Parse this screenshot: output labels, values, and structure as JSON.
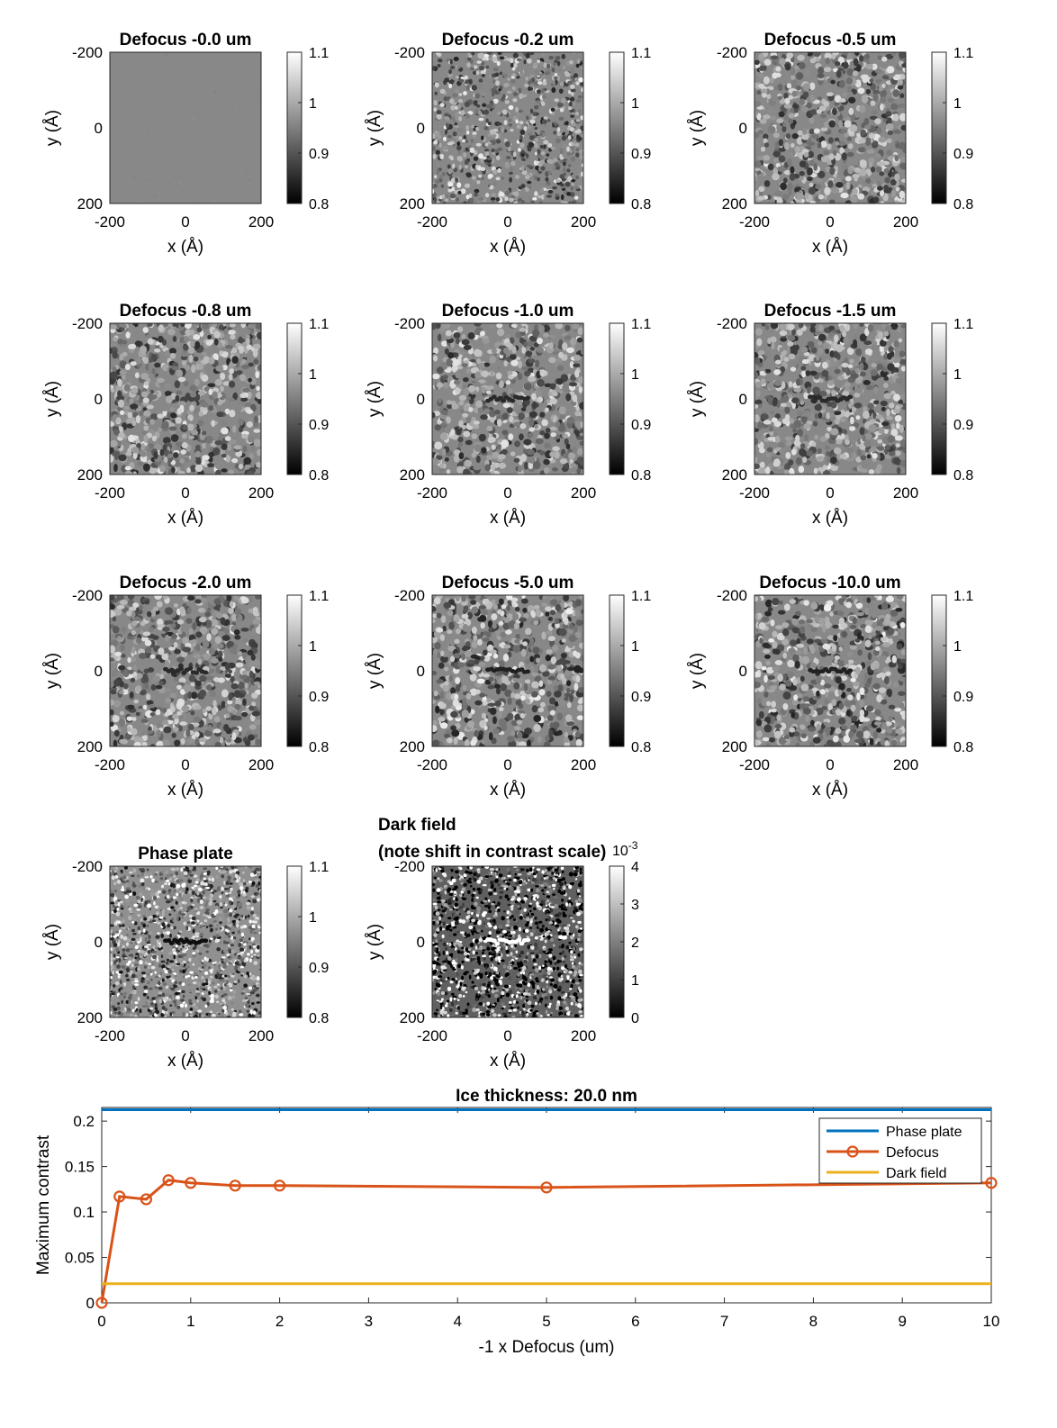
{
  "chart_data": [
    {
      "type": "heatmap",
      "title": "Defocus  -0.0 um",
      "xlabel": "x (Å)",
      "ylabel": "y (Å)",
      "x_ticks": [
        "-200",
        "0",
        "200"
      ],
      "y_ticks": [
        "-200",
        "0",
        "200"
      ],
      "colorbar_ticks": [
        "1.1",
        "1",
        "0.9",
        "0.8"
      ],
      "colorbar_range": [
        0.8,
        1.1
      ],
      "colormap": "gray",
      "texture": "flat",
      "mean": 0.96,
      "noise": 0.005,
      "seed": 1
    },
    {
      "type": "heatmap",
      "title": "Defocus  -0.2 um",
      "xlabel": "x (Å)",
      "ylabel": "y (Å)",
      "x_ticks": [
        "-200",
        "0",
        "200"
      ],
      "y_ticks": [
        "-200",
        "0",
        "200"
      ],
      "colorbar_ticks": [
        "1.1",
        "1",
        "0.9",
        "0.8"
      ],
      "colorbar_range": [
        0.8,
        1.1
      ],
      "colormap": "gray",
      "texture": "fine",
      "mean": 0.96,
      "noise": 0.055,
      "seed": 2
    },
    {
      "type": "heatmap",
      "title": "Defocus  -0.5 um",
      "xlabel": "x (Å)",
      "ylabel": "y (Å)",
      "x_ticks": [
        "-200",
        "0",
        "200"
      ],
      "y_ticks": [
        "-200",
        "0",
        "200"
      ],
      "colorbar_ticks": [
        "1.1",
        "1",
        "0.9",
        "0.8"
      ],
      "colorbar_range": [
        0.8,
        1.1
      ],
      "colormap": "gray",
      "texture": "blobs",
      "mean": 0.96,
      "noise": 0.05,
      "seed": 3
    },
    {
      "type": "heatmap",
      "title": "Defocus  -0.8 um",
      "xlabel": "x (Å)",
      "ylabel": "y (Å)",
      "x_ticks": [
        "-200",
        "0",
        "200"
      ],
      "y_ticks": [
        "-200",
        "0",
        "200"
      ],
      "colorbar_ticks": [
        "1.1",
        "1",
        "0.9",
        "0.8"
      ],
      "colorbar_range": [
        0.8,
        1.1
      ],
      "colormap": "gray",
      "texture": "blobs",
      "mean": 0.96,
      "noise": 0.05,
      "seed": 4
    },
    {
      "type": "heatmap",
      "title": "Defocus  -1.0 um",
      "xlabel": "x (Å)",
      "ylabel": "y (Å)",
      "x_ticks": [
        "-200",
        "0",
        "200"
      ],
      "y_ticks": [
        "-200",
        "0",
        "200"
      ],
      "colorbar_ticks": [
        "1.1",
        "1",
        "0.9",
        "0.8"
      ],
      "colorbar_range": [
        0.8,
        1.1
      ],
      "colormap": "gray",
      "texture": "blobs",
      "mean": 0.96,
      "noise": 0.05,
      "seed": 5
    },
    {
      "type": "heatmap",
      "title": "Defocus  -1.5 um",
      "xlabel": "x (Å)",
      "ylabel": "y (Å)",
      "x_ticks": [
        "-200",
        "0",
        "200"
      ],
      "y_ticks": [
        "-200",
        "0",
        "200"
      ],
      "colorbar_ticks": [
        "1.1",
        "1",
        "0.9",
        "0.8"
      ],
      "colorbar_range": [
        0.8,
        1.1
      ],
      "colormap": "gray",
      "texture": "blobs",
      "mean": 0.96,
      "noise": 0.05,
      "seed": 6
    },
    {
      "type": "heatmap",
      "title": "Defocus  -2.0 um",
      "xlabel": "x (Å)",
      "ylabel": "y (Å)",
      "x_ticks": [
        "-200",
        "0",
        "200"
      ],
      "y_ticks": [
        "-200",
        "0",
        "200"
      ],
      "colorbar_ticks": [
        "1.1",
        "1",
        "0.9",
        "0.8"
      ],
      "colorbar_range": [
        0.8,
        1.1
      ],
      "colormap": "gray",
      "texture": "blobs",
      "mean": 0.96,
      "noise": 0.05,
      "seed": 7
    },
    {
      "type": "heatmap",
      "title": "Defocus  -5.0 um",
      "xlabel": "x (Å)",
      "ylabel": "y (Å)",
      "x_ticks": [
        "-200",
        "0",
        "200"
      ],
      "y_ticks": [
        "-200",
        "0",
        "200"
      ],
      "colorbar_ticks": [
        "1.1",
        "1",
        "0.9",
        "0.8"
      ],
      "colorbar_range": [
        0.8,
        1.1
      ],
      "colormap": "gray",
      "texture": "blobs",
      "mean": 0.96,
      "noise": 0.055,
      "seed": 8
    },
    {
      "type": "heatmap",
      "title": "Defocus -10.0 um",
      "xlabel": "x (Å)",
      "ylabel": "y (Å)",
      "x_ticks": [
        "-200",
        "0",
        "200"
      ],
      "y_ticks": [
        "-200",
        "0",
        "200"
      ],
      "colorbar_ticks": [
        "1.1",
        "1",
        "0.9",
        "0.8"
      ],
      "colorbar_range": [
        0.8,
        1.1
      ],
      "colormap": "gray",
      "texture": "blobs",
      "mean": 0.96,
      "noise": 0.055,
      "seed": 9
    },
    {
      "type": "heatmap",
      "title": "Phase plate",
      "xlabel": "x (Å)",
      "ylabel": "y (Å)",
      "x_ticks": [
        "-200",
        "0",
        "200"
      ],
      "y_ticks": [
        "-200",
        "0",
        "200"
      ],
      "colorbar_ticks": [
        "1.1",
        "1",
        "0.9",
        "0.8"
      ],
      "colorbar_range": [
        0.8,
        1.1
      ],
      "colormap": "gray",
      "texture": "grain",
      "mean": 0.97,
      "noise": 0.07,
      "seed": 10
    },
    {
      "type": "heatmap",
      "title": [
        "Dark field",
        "(note shift in contrast scale)"
      ],
      "xlabel": "x (Å)",
      "ylabel": "y (Å)",
      "x_ticks": [
        "-200",
        "0",
        "200"
      ],
      "y_ticks": [
        "-200",
        "0",
        "200"
      ],
      "colorbar_ticks": [
        "4",
        "3",
        "2",
        "1",
        "0"
      ],
      "colorbar_range": [
        0,
        4
      ],
      "colorbar_exponent": "10",
      "colorbar_exponent_power": "-3",
      "colormap": "gray",
      "texture": "grain",
      "mean": 1.5,
      "noise": 1.6,
      "seed": 11
    },
    {
      "type": "line",
      "title": "Ice thickness:  20.0 nm",
      "xlabel": "-1 x Defocus (um)",
      "ylabel": "Maximum contrast",
      "xlim": [
        0,
        10
      ],
      "ylim": [
        0,
        0.215
      ],
      "x_ticks": [
        "0",
        "1",
        "2",
        "3",
        "4",
        "5",
        "6",
        "7",
        "8",
        "9",
        "10"
      ],
      "y_ticks": [
        "0",
        "0.05",
        "0.1",
        "0.15",
        "0.2"
      ],
      "grid": false,
      "legend_position": "top-right",
      "series": [
        {
          "name": "Phase plate",
          "color": "#0072BD",
          "marker": "none",
          "x": [
            0,
            10
          ],
          "y": [
            0.2125,
            0.2125
          ]
        },
        {
          "name": "Defocus",
          "color": "#D95319",
          "marker": "circle",
          "x": [
            0,
            0.2,
            0.5,
            0.75,
            1,
            1.5,
            2,
            5,
            10
          ],
          "y": [
            0.0,
            0.117,
            0.114,
            0.135,
            0.132,
            0.129,
            0.129,
            0.127,
            0.132
          ]
        },
        {
          "name": "Dark field",
          "color": "#EDB120",
          "marker": "none",
          "x": [
            0,
            10
          ],
          "y": [
            0.021,
            0.021
          ]
        }
      ]
    }
  ]
}
